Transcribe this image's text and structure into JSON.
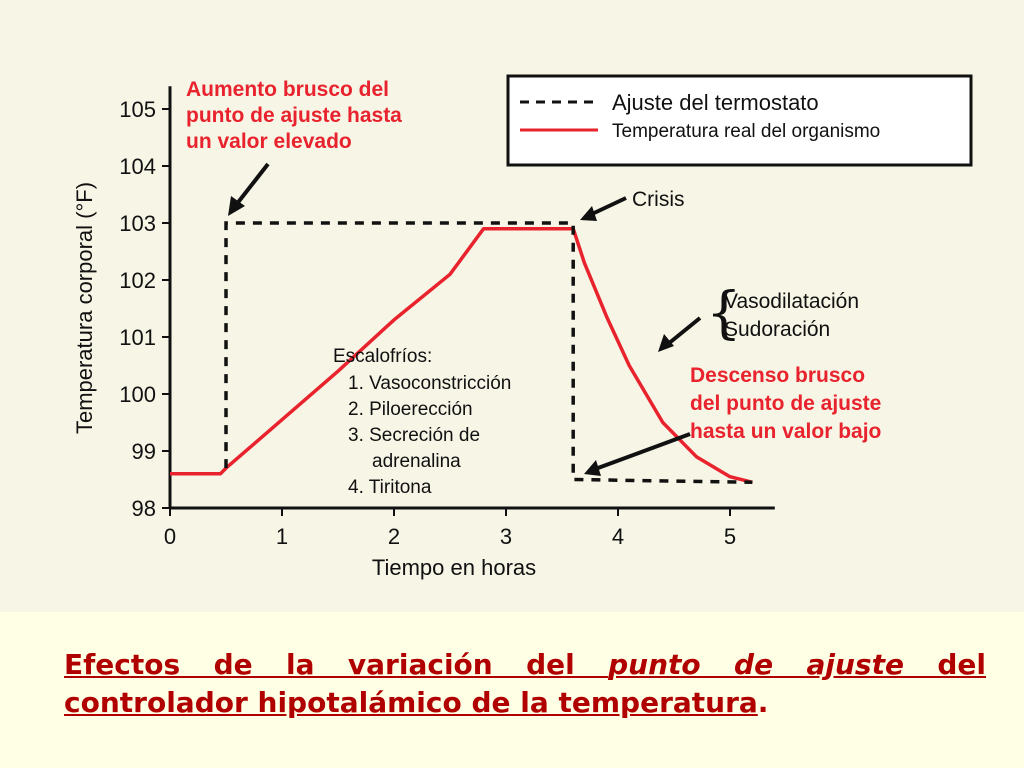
{
  "chart_data": {
    "type": "line",
    "xlabel": "Tiempo en horas",
    "ylabel": "Temperatura corporal (°F)",
    "xlim": [
      0,
      5.4
    ],
    "ylim": [
      98,
      105.4
    ],
    "x_ticks": [
      "0",
      "1",
      "2",
      "3",
      "4",
      "5"
    ],
    "y_ticks": [
      "98",
      "99",
      "100",
      "101",
      "102",
      "103",
      "104",
      "105"
    ],
    "legend_position": "top-right",
    "colors": {
      "set_point": "#111111",
      "actual": "#e8232e",
      "annotation_red": "#e8232e"
    },
    "series": [
      {
        "name": "Ajuste del termostato",
        "style": "dashed",
        "x": [
          0.5,
          0.5,
          3.6,
          3.6,
          5.2
        ],
        "y": [
          98.7,
          103.0,
          103.0,
          98.5,
          98.45
        ]
      },
      {
        "name": "Temperatura real del organismo",
        "style": "solid",
        "x": [
          0.0,
          0.45,
          0.5,
          1.0,
          1.5,
          2.0,
          2.5,
          2.8,
          3.6,
          3.7,
          3.9,
          4.1,
          4.4,
          4.7,
          5.0,
          5.2
        ],
        "y": [
          98.6,
          98.6,
          98.7,
          99.55,
          100.4,
          101.3,
          102.1,
          102.9,
          102.9,
          102.3,
          101.35,
          100.5,
          99.5,
          98.9,
          98.55,
          98.45
        ]
      }
    ],
    "annotations": {
      "aumento": [
        "Aumento brusco del",
        "punto de ajuste hasta",
        "un valor elevado"
      ],
      "crisis": "Crisis",
      "vaso": [
        "Vasodilatación",
        "Sudoración"
      ],
      "descenso": [
        "Descenso brusco",
        "del punto de ajuste",
        "hasta un valor bajo"
      ],
      "escalofrios": [
        "Escalofríos:",
        "1. Vasoconstricción",
        "2. Piloerección",
        "3. Secreción de",
        "adrenalina",
        "4. Tiritona"
      ]
    }
  },
  "caption": {
    "part1": "Efectos de la variación del ",
    "part2": "punto de ajuste",
    "part3": " del controlador hipotalámico de la temperatura",
    "part4": "."
  }
}
